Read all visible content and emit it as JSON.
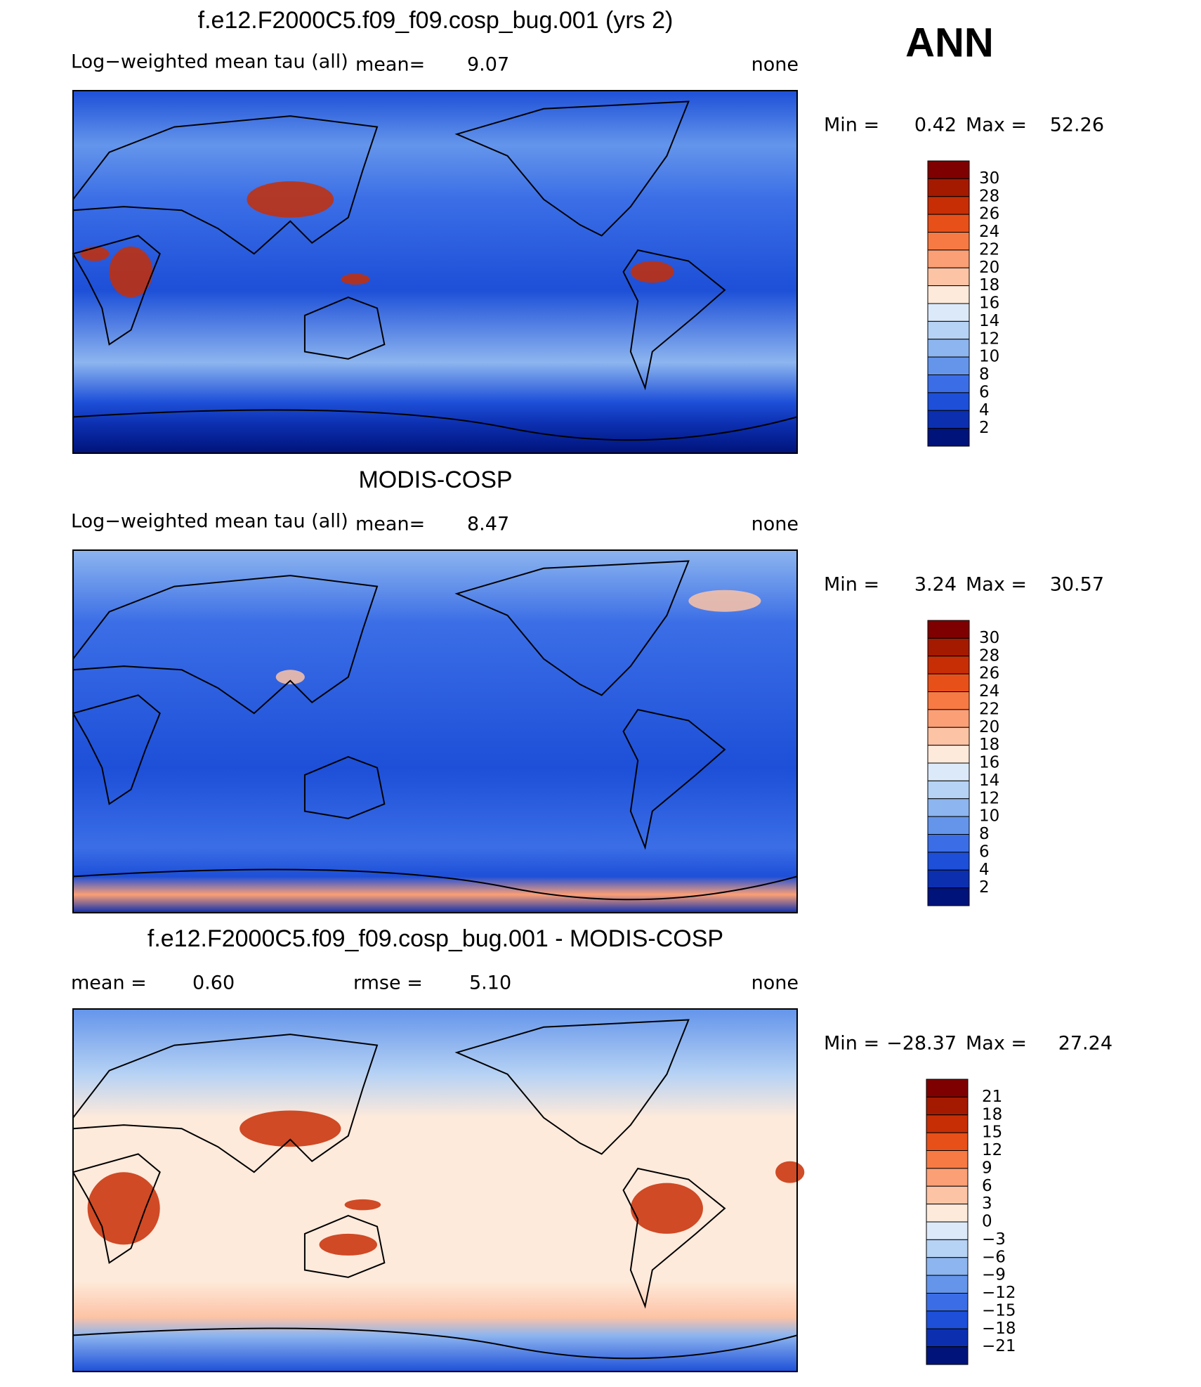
{
  "header": {
    "season": "ANN"
  },
  "palette": {
    "tau": [
      "#7f0000",
      "#a31a00",
      "#c72e05",
      "#e8501a",
      "#f77a45",
      "#fb9f76",
      "#fdc3a5",
      "#feeadb",
      "#dbe9f8",
      "#b6d2f4",
      "#8db5ef",
      "#6495eb",
      "#3b6ee6",
      "#1d4fd8",
      "#0c2fb0",
      "#00137a"
    ]
  },
  "panels": [
    {
      "title": "f.e12.F2000C5.f09_f09.cosp_bug.001 (yrs 2)",
      "variable": "Log−weighted mean tau (all)",
      "mean_label": "mean=",
      "mean": "9.07",
      "units": "none",
      "min_label": "Min =",
      "min": "0.42",
      "max_label": "Max =",
      "max": "52.26",
      "levels": [
        "30",
        "28",
        "26",
        "24",
        "22",
        "20",
        "18",
        "16",
        "14",
        "12",
        "10",
        "8",
        "6",
        "4",
        "2"
      ]
    },
    {
      "title": "MODIS-COSP",
      "variable": "Log−weighted mean tau (all)",
      "mean_label": "mean=",
      "mean": "8.47",
      "units": "none",
      "min_label": "Min =",
      "min": "3.24",
      "max_label": "Max =",
      "max": "30.57",
      "levels": [
        "30",
        "28",
        "26",
        "24",
        "22",
        "20",
        "18",
        "16",
        "14",
        "12",
        "10",
        "8",
        "6",
        "4",
        "2"
      ]
    },
    {
      "title": "f.e12.F2000C5.f09_f09.cosp_bug.001 - MODIS-COSP",
      "mean_label": "mean =",
      "mean": "0.60",
      "rmse_label": "rmse =",
      "rmse": "5.10",
      "units": "none",
      "min_label": "Min =",
      "min": "−28.37",
      "max_label": "Max =",
      "max": "27.24",
      "levels": [
        "21",
        "18",
        "15",
        "12",
        "9",
        "6",
        "3",
        "0",
        "−3",
        "−6",
        "−9",
        "−12",
        "−15",
        "−18",
        "−21"
      ]
    }
  ]
}
